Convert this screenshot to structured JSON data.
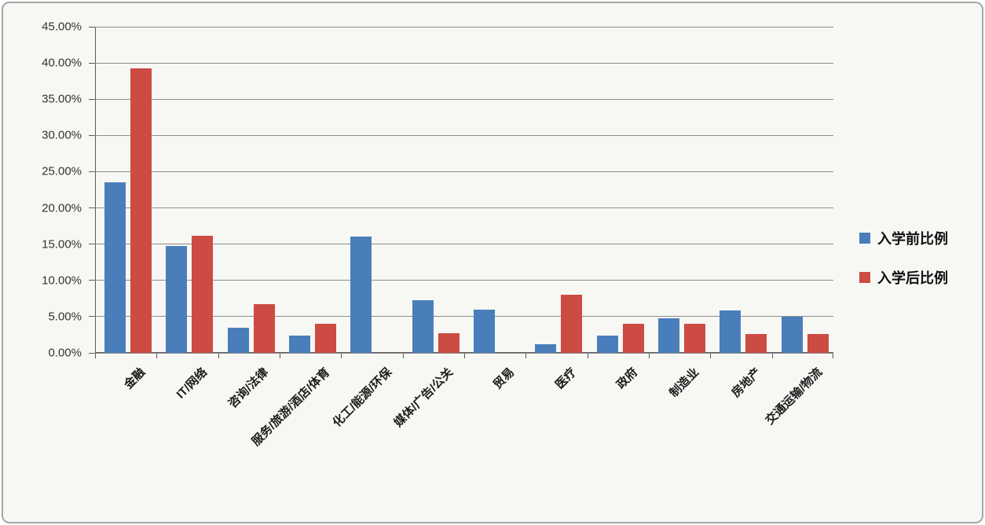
{
  "chart_data": {
    "type": "bar",
    "title": "",
    "xlabel": "",
    "ylabel": "",
    "categories": [
      "金融",
      "IT/网络",
      "咨询/法律",
      "服务/旅游/酒店/体育",
      "化工/能源/环保",
      "媒体/广告/公关",
      "贸易",
      "医疗",
      "政府",
      "制造业",
      "房地产",
      "交通运输/物流"
    ],
    "series": [
      {
        "name": "入学前比例",
        "color": "#4A7EBB",
        "values": [
          23.5,
          14.8,
          3.5,
          2.4,
          16.0,
          7.3,
          6.0,
          1.2,
          2.4,
          4.8,
          5.9,
          5.0
        ]
      },
      {
        "name": "入学后比例",
        "color": "#CC4B42",
        "values": [
          39.3,
          16.2,
          6.7,
          4.0,
          0,
          2.7,
          0,
          8.0,
          4.0,
          4.0,
          2.6,
          2.6
        ]
      }
    ],
    "ylim": [
      0,
      45
    ],
    "y_tick_step": 5,
    "y_tick_labels": [
      "0.00%",
      "5.00%",
      "10.00%",
      "15.00%",
      "20.00%",
      "25.00%",
      "30.00%",
      "35.00%",
      "40.00%",
      "45.00%"
    ],
    "grid": true,
    "legend_position": "right"
  },
  "colors": {
    "series_before": "#4A7EBB",
    "series_after": "#CC4B42",
    "background": "#f7f7f4",
    "gridline": "#8c8c8c",
    "axis": "#5a5a5a"
  }
}
